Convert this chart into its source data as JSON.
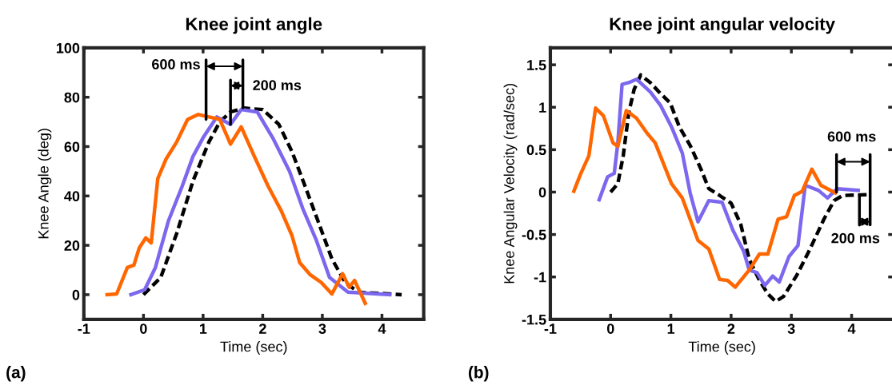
{
  "chart_data": [
    {
      "type": "line",
      "title": "Knee joint angle",
      "xlabel": "Time (sec)",
      "ylabel": "Knee Angle (deg)",
      "xlim": [
        -1,
        4.7
      ],
      "ylim": [
        -10,
        100
      ],
      "xticks": [
        -1,
        0,
        1,
        2,
        3,
        4
      ],
      "yticks": [
        0,
        20,
        40,
        60,
        80,
        100
      ],
      "grid": false,
      "legend": false,
      "series": [
        {
          "color": "#000000",
          "line_style": "dashed",
          "x": [
            0,
            0.29,
            0.56,
            0.83,
            1.1,
            1.28,
            1.46,
            1.68,
            2.0,
            2.27,
            2.49,
            2.71,
            2.94,
            3.16,
            3.39,
            3.61,
            4.33
          ],
          "values": [
            0,
            7,
            25,
            46,
            62,
            70,
            74,
            75.6,
            75,
            69,
            58,
            44,
            29,
            14.5,
            4.7,
            1,
            0
          ]
        },
        {
          "color": "#7b68ee",
          "line_style": "solid",
          "x": [
            -0.21,
            0.02,
            0.2,
            0.42,
            0.65,
            0.83,
            1.01,
            1.23,
            1.46,
            1.64,
            1.91,
            2.18,
            2.45,
            2.67,
            2.9,
            3.12,
            3.43,
            4.13
          ],
          "values": [
            0,
            2,
            11,
            30,
            44,
            56,
            64,
            72,
            69,
            75,
            74,
            63,
            50,
            35,
            22,
            7,
            1,
            0
          ]
        },
        {
          "color": "#ff6600",
          "line_style": "solid",
          "x": [
            -0.61,
            -0.45,
            -0.27,
            -0.16,
            -0.07,
            0.04,
            0.13,
            0.24,
            0.38,
            0.56,
            0.74,
            0.92,
            1.1,
            1.28,
            1.46,
            1.64,
            1.86,
            2.09,
            2.31,
            2.49,
            2.62,
            2.8,
            2.98,
            3.16,
            3.34,
            3.45,
            3.54,
            3.72
          ],
          "values": [
            0,
            0.3,
            11,
            12,
            19,
            23,
            21,
            47,
            55,
            62,
            71,
            73,
            72,
            71,
            61,
            68,
            56,
            44,
            34,
            24,
            13,
            8,
            5,
            0.3,
            8.5,
            3,
            5.8,
            -3.5
          ]
        }
      ],
      "annotations": [
        {
          "text": "600 ms",
          "x": 1.05,
          "y": 71
        },
        {
          "text": "200 ms",
          "x": 1.46,
          "y": 69
        },
        "(a)"
      ]
    },
    {
      "type": "line",
      "title": "Knee joint angular velocity",
      "xlabel": "Time (sec)",
      "ylabel": "Knee Angular Velocity (rad/sec)",
      "xlim": [
        -1,
        4.7
      ],
      "ylim": [
        -1.5,
        1.7
      ],
      "xticks": [
        -1,
        0,
        1,
        2,
        3,
        4
      ],
      "yticks": [
        -1.5,
        -1,
        -0.5,
        0,
        0.5,
        1,
        1.5
      ],
      "grid": false,
      "legend": false,
      "series": [
        {
          "color": "#000000",
          "line_style": "dashed",
          "x": [
            0,
            0.12,
            0.21,
            0.3,
            0.39,
            0.5,
            0.66,
            0.83,
            0.99,
            1.14,
            1.32,
            1.5,
            1.63,
            1.81,
            2.0,
            2.16,
            2.3,
            2.47,
            2.61,
            2.74,
            2.87,
            3.09,
            3.31,
            3.54,
            3.71,
            3.85,
            4.29
          ],
          "values": [
            0,
            0.1,
            0.43,
            0.93,
            1.21,
            1.38,
            1.29,
            1.16,
            1.05,
            0.77,
            0.55,
            0.27,
            0.04,
            -0.04,
            -0.13,
            -0.38,
            -0.79,
            -1.04,
            -1.2,
            -1.29,
            -1.23,
            -0.98,
            -0.67,
            -0.32,
            -0.1,
            -0.04,
            -0.03
          ]
        },
        {
          "color": "#7b68ee",
          "line_style": "solid",
          "x": [
            -0.19,
            -0.05,
            0.06,
            0.12,
            0.19,
            0.3,
            0.43,
            0.66,
            0.83,
            1.01,
            1.19,
            1.32,
            1.45,
            1.63,
            1.85,
            2.03,
            2.21,
            2.3,
            2.43,
            2.56,
            2.69,
            2.8,
            2.96,
            3.11,
            3.23,
            3.45,
            3.6,
            3.76,
            4.11
          ],
          "values": [
            -0.09,
            0.18,
            0.22,
            0.58,
            1.27,
            1.29,
            1.33,
            1.18,
            1.02,
            0.77,
            0.46,
            -0.01,
            -0.35,
            -0.1,
            -0.12,
            -0.45,
            -0.7,
            -0.92,
            -0.95,
            -1.1,
            -0.99,
            -1.06,
            -0.76,
            -0.63,
            0.08,
            0.02,
            -0.07,
            0.04,
            0.02
          ]
        },
        {
          "color": "#ff6600",
          "line_style": "solid",
          "x": [
            -0.61,
            -0.5,
            -0.36,
            -0.25,
            -0.12,
            0.04,
            0.12,
            0.26,
            0.43,
            0.61,
            0.74,
            1.01,
            1.19,
            1.45,
            1.63,
            1.81,
            1.94,
            2.07,
            2.3,
            2.47,
            2.61,
            2.78,
            2.92,
            3.05,
            3.18,
            3.34,
            3.49,
            3.73
          ],
          "values": [
            0.01,
            0.21,
            0.43,
            0.99,
            0.9,
            0.58,
            0.54,
            0.96,
            0.87,
            0.69,
            0.58,
            0.1,
            -0.07,
            -0.57,
            -0.67,
            -1.03,
            -1.04,
            -1.12,
            -0.92,
            -0.73,
            -0.73,
            -0.32,
            -0.29,
            -0.04,
            0.01,
            0.27,
            0.08,
            -0.01
          ]
        }
      ],
      "annotations": [
        {
          "text": "600 ms",
          "x": 3.75,
          "y": 0
        },
        {
          "text": "200 ms",
          "x": 4.13,
          "y": -0.03
        },
        "(b)"
      ]
    }
  ]
}
